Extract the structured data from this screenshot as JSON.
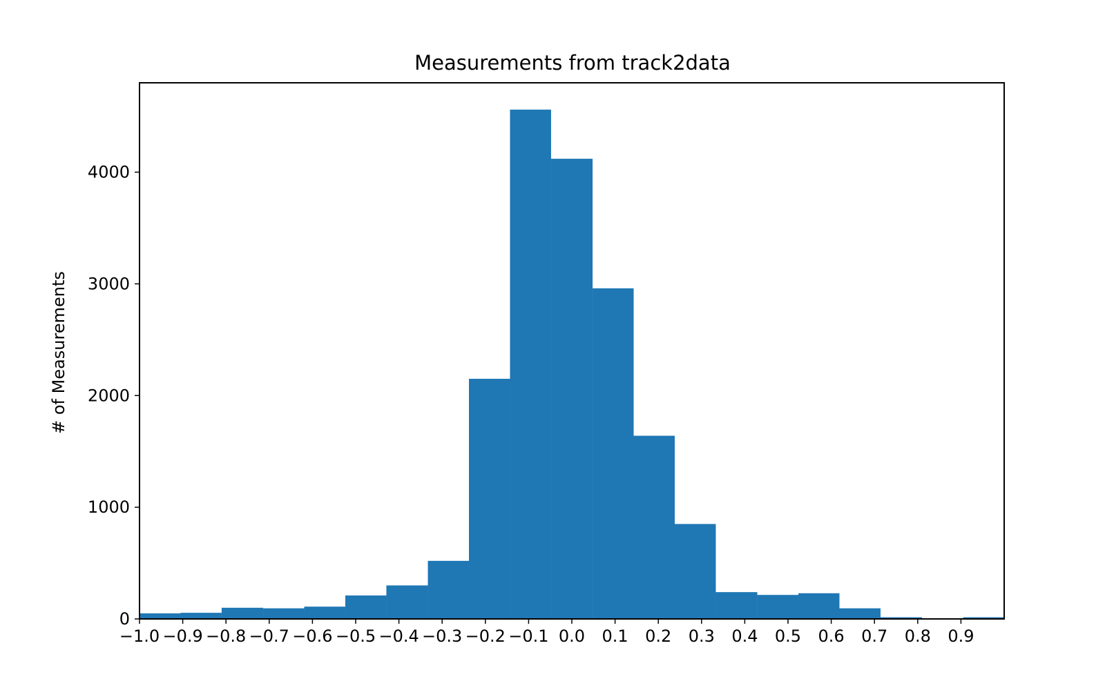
{
  "colors": {
    "bar": "#1f77b4",
    "axis": "#000000",
    "background": "#ffffff"
  },
  "chart_data": {
    "type": "bar",
    "title": "Measurements from track2data",
    "xlabel": "",
    "ylabel": "# of Measurements",
    "grid": false,
    "xlim": [
      -1.0,
      1.0
    ],
    "ylim": [
      0,
      4800
    ],
    "bins": [
      {
        "x0": -1.0,
        "x1": -0.905,
        "value": 50
      },
      {
        "x0": -0.905,
        "x1": -0.81,
        "value": 55
      },
      {
        "x0": -0.81,
        "x1": -0.714,
        "value": 100
      },
      {
        "x0": -0.714,
        "x1": -0.619,
        "value": 95
      },
      {
        "x0": -0.619,
        "x1": -0.524,
        "value": 110
      },
      {
        "x0": -0.524,
        "x1": -0.429,
        "value": 210
      },
      {
        "x0": -0.429,
        "x1": -0.333,
        "value": 300
      },
      {
        "x0": -0.333,
        "x1": -0.238,
        "value": 520
      },
      {
        "x0": -0.238,
        "x1": -0.143,
        "value": 2150
      },
      {
        "x0": -0.143,
        "x1": -0.048,
        "value": 4560
      },
      {
        "x0": -0.048,
        "x1": 0.048,
        "value": 4120
      },
      {
        "x0": 0.048,
        "x1": 0.143,
        "value": 2960
      },
      {
        "x0": 0.143,
        "x1": 0.238,
        "value": 1640
      },
      {
        "x0": 0.238,
        "x1": 0.333,
        "value": 850
      },
      {
        "x0": 0.333,
        "x1": 0.429,
        "value": 240
      },
      {
        "x0": 0.429,
        "x1": 0.524,
        "value": 215
      },
      {
        "x0": 0.524,
        "x1": 0.619,
        "value": 230
      },
      {
        "x0": 0.619,
        "x1": 0.714,
        "value": 95
      },
      {
        "x0": 0.714,
        "x1": 0.81,
        "value": 15
      },
      {
        "x0": 0.81,
        "x1": 0.905,
        "value": 5
      },
      {
        "x0": 0.905,
        "x1": 1.0,
        "value": 15
      }
    ],
    "x_ticks": [
      {
        "value": -1.0,
        "label": "−1.0"
      },
      {
        "value": -0.9,
        "label": "−0.9"
      },
      {
        "value": -0.8,
        "label": "−0.8"
      },
      {
        "value": -0.7,
        "label": "−0.7"
      },
      {
        "value": -0.6,
        "label": "−0.6"
      },
      {
        "value": -0.5,
        "label": "−0.5"
      },
      {
        "value": -0.4,
        "label": "−0.4"
      },
      {
        "value": -0.3,
        "label": "−0.3"
      },
      {
        "value": -0.2,
        "label": "−0.2"
      },
      {
        "value": -0.1,
        "label": "−0.1"
      },
      {
        "value": 0.0,
        "label": "0.0"
      },
      {
        "value": 0.1,
        "label": "0.1"
      },
      {
        "value": 0.2,
        "label": "0.2"
      },
      {
        "value": 0.3,
        "label": "0.3"
      },
      {
        "value": 0.4,
        "label": "0.4"
      },
      {
        "value": 0.5,
        "label": "0.5"
      },
      {
        "value": 0.6,
        "label": "0.6"
      },
      {
        "value": 0.7,
        "label": "0.7"
      },
      {
        "value": 0.8,
        "label": "0.8"
      },
      {
        "value": 0.9,
        "label": "0.9"
      }
    ],
    "y_ticks": [
      {
        "value": 0,
        "label": "0"
      },
      {
        "value": 1000,
        "label": "1000"
      },
      {
        "value": 2000,
        "label": "2000"
      },
      {
        "value": 3000,
        "label": "3000"
      },
      {
        "value": 4000,
        "label": "4000"
      }
    ]
  }
}
